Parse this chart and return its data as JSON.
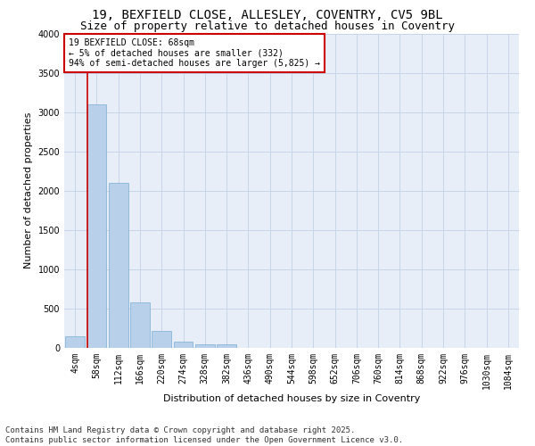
{
  "title_line1": "19, BEXFIELD CLOSE, ALLESLEY, COVENTRY, CV5 9BL",
  "title_line2": "Size of property relative to detached houses in Coventry",
  "xlabel": "Distribution of detached houses by size in Coventry",
  "ylabel": "Number of detached properties",
  "footer_line1": "Contains HM Land Registry data © Crown copyright and database right 2025.",
  "footer_line2": "Contains public sector information licensed under the Open Government Licence v3.0.",
  "annotation_line1": "19 BEXFIELD CLOSE: 68sqm",
  "annotation_line2": "← 5% of detached houses are smaller (332)",
  "annotation_line3": "94% of semi-detached houses are larger (5,825) →",
  "bar_labels": [
    "4sqm",
    "58sqm",
    "112sqm",
    "166sqm",
    "220sqm",
    "274sqm",
    "328sqm",
    "382sqm",
    "436sqm",
    "490sqm",
    "544sqm",
    "598sqm",
    "652sqm",
    "706sqm",
    "760sqm",
    "814sqm",
    "868sqm",
    "922sqm",
    "976sqm",
    "1030sqm",
    "1084sqm"
  ],
  "bar_values": [
    150,
    3100,
    2100,
    580,
    220,
    80,
    50,
    40,
    0,
    0,
    0,
    0,
    0,
    0,
    0,
    0,
    0,
    0,
    0,
    0,
    0
  ],
  "bar_color": "#b8d0ea",
  "bar_edge_color": "#7aadd4",
  "vline_color": "#cc0000",
  "vline_x_bar_index": 1,
  "ylim": [
    0,
    4000
  ],
  "yticks": [
    0,
    500,
    1000,
    1500,
    2000,
    2500,
    3000,
    3500,
    4000
  ],
  "grid_color": "#c8d4e8",
  "bg_color": "#e8eef8",
  "annotation_box_color": "#cc0000",
  "title_fontsize": 10,
  "subtitle_fontsize": 9,
  "axis_label_fontsize": 8,
  "tick_fontsize": 7,
  "annotation_fontsize": 7,
  "footer_fontsize": 6.5
}
